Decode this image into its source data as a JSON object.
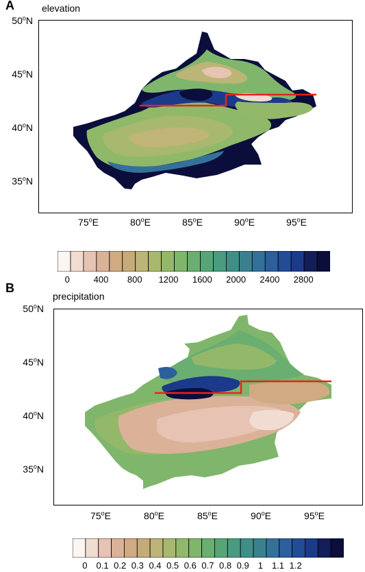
{
  "panel_a": {
    "label": "A",
    "title": "elevation",
    "lat_ticks": [
      "50°N",
      "45°N",
      "40°N",
      "35°N"
    ],
    "lon_ticks": [
      "75°E",
      "80°E",
      "85°E",
      "90°E",
      "95°E"
    ],
    "colorbar_labels": [
      "0",
      "400",
      "800",
      "1200",
      "1600",
      "2000",
      "2400",
      "2800"
    ]
  },
  "panel_b": {
    "label": "B",
    "title": "precipitation",
    "lat_ticks": [
      "50°N",
      "45°N",
      "40°N",
      "35°N"
    ],
    "lon_ticks": [
      "75°E",
      "80°E",
      "85°E",
      "90°E",
      "95°E"
    ],
    "colorbar_labels": [
      "0",
      "0.1",
      "0.2",
      "0.3",
      "0.4",
      "0.5",
      "0.6",
      "0.7",
      "0.8",
      "0.9",
      "1",
      "1.1",
      "1.2"
    ]
  },
  "colors": {
    "palette": [
      "#fbf6f1",
      "#f1dcd1",
      "#e6c3b3",
      "#dbb198",
      "#d0aa82",
      "#c6ab78",
      "#bcb575",
      "#a8b86f",
      "#94b86a",
      "#7fb66c",
      "#6aae71",
      "#57a576",
      "#4a9b80",
      "#3f8f88",
      "#3a8190",
      "#34719a",
      "#2c5f9b",
      "#234c96",
      "#1b3a8a",
      "#131d5a",
      "#0b0e3b"
    ],
    "border_line": "#e8231c"
  }
}
